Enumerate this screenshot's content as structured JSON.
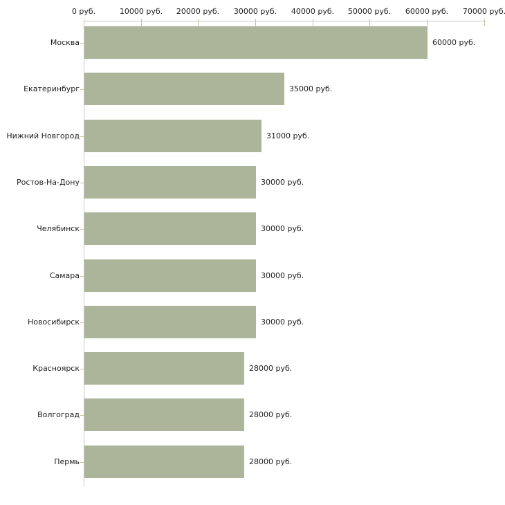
{
  "chart_data": {
    "type": "bar",
    "orientation": "horizontal",
    "title": "",
    "xlabel": "",
    "ylabel": "",
    "categories": [
      "Москва",
      "Екатеринбург",
      "Нижний Новгород",
      "Ростов-На-Дону",
      "Челябинск",
      "Самара",
      "Новосибирск",
      "Красноярск",
      "Волгоград",
      "Пермь"
    ],
    "values": [
      60000,
      35000,
      31000,
      30000,
      30000,
      30000,
      30000,
      28000,
      28000,
      28000
    ],
    "value_labels": [
      "60000 руб.",
      "35000 руб.",
      "31000 руб.",
      "30000 руб.",
      "30000 руб.",
      "30000 руб.",
      "30000 руб.",
      "28000 руб.",
      "28000 руб.",
      "28000 руб."
    ],
    "x_ticks": [
      0,
      10000,
      20000,
      30000,
      40000,
      50000,
      60000,
      70000
    ],
    "x_tick_labels": [
      "0 руб.",
      "10000 руб.",
      "20000 руб.",
      "30000 руб.",
      "40000 руб.",
      "50000 руб.",
      "60000 руб.",
      "70000 руб."
    ],
    "xlim": [
      0,
      70000
    ],
    "grid": false,
    "legend": null,
    "colors": {
      "bar": "#acb59a",
      "axis": "#c6c6c6",
      "tick": "#c9c5a3",
      "text": "#1c1c1c",
      "background": "#ffffff"
    }
  }
}
